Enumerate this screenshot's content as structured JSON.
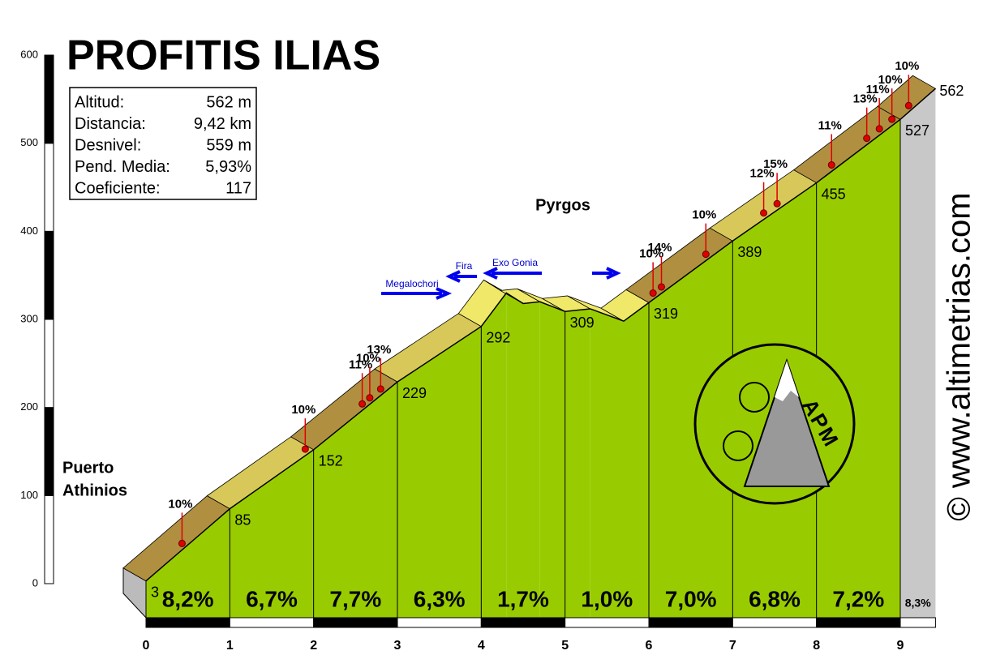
{
  "chart_data": {
    "type": "profile",
    "title": "PROFITIS ILIAS",
    "info": [
      {
        "label": "Altitud:",
        "value": "562 m"
      },
      {
        "label": "Distancia:",
        "value": "9,42 km"
      },
      {
        "label": "Desnivel:",
        "value": "559 m"
      },
      {
        "label": "Pend. Media:",
        "value": "5,93%"
      },
      {
        "label": "Coeficiente:",
        "value": "117"
      }
    ],
    "xlim": [
      0,
      9.42
    ],
    "xticks": [
      0,
      1,
      2,
      3,
      4,
      5,
      6,
      7,
      8,
      9
    ],
    "ylim": [
      0,
      600
    ],
    "yticks": [
      0,
      100,
      200,
      300,
      400,
      500,
      600
    ],
    "profile": {
      "x": [
        0,
        1,
        2,
        3,
        4,
        4.3,
        4.5,
        4.7,
        5,
        5.3,
        5.7,
        6,
        7,
        8,
        9,
        9.42
      ],
      "y": [
        3,
        85,
        152,
        229,
        292,
        330,
        318,
        320,
        309,
        312,
        298,
        319,
        389,
        455,
        527,
        562
      ]
    },
    "altitude_labels": {
      "x": [
        0,
        1,
        2,
        3,
        4,
        5,
        6,
        7,
        8,
        9,
        9.42
      ],
      "values": [
        3,
        85,
        152,
        229,
        292,
        309,
        319,
        389,
        455,
        527,
        562
      ]
    },
    "segments": {
      "values": [
        8.2,
        6.7,
        7.7,
        6.3,
        1.7,
        1.0,
        7.0,
        6.8,
        7.2,
        8.3
      ],
      "value_labels": [
        "8,2%",
        "6,7%",
        "7,7%",
        "6,3%",
        "1,7%",
        "1,0%",
        "7,0%",
        "6,8%",
        "7,2%",
        "8,3%"
      ]
    },
    "ramps": [
      {
        "x": 0.43,
        "value": 10,
        "label": "10%"
      },
      {
        "x": 1.9,
        "value": 10,
        "label": "10%"
      },
      {
        "x": 2.58,
        "value": 11,
        "label": "11%"
      },
      {
        "x": 2.67,
        "value": 10,
        "label": "10%"
      },
      {
        "x": 2.8,
        "value": 13,
        "label": "13%"
      },
      {
        "x": 6.05,
        "value": 10,
        "label": "10%"
      },
      {
        "x": 6.15,
        "value": 14,
        "label": "14%"
      },
      {
        "x": 6.68,
        "value": 10,
        "label": "10%"
      },
      {
        "x": 7.37,
        "value": 12,
        "label": "12%"
      },
      {
        "x": 7.53,
        "value": 15,
        "label": "15%"
      },
      {
        "x": 8.18,
        "value": 11,
        "label": "11%"
      },
      {
        "x": 8.6,
        "value": 13,
        "label": "13%"
      },
      {
        "x": 8.75,
        "value": 11,
        "label": "11%"
      },
      {
        "x": 8.9,
        "value": 10,
        "label": "10%"
      },
      {
        "x": 9.1,
        "value": 10,
        "label": "10%"
      }
    ],
    "places": {
      "start": [
        "Puerto",
        "Athinios"
      ],
      "town": "Pyrgos"
    },
    "directions": {
      "megalochori": "Megalochori",
      "fira": "Fira",
      "exo_gonia": "Exo Gonia"
    },
    "logo": "APM",
    "credit": "© www.altimetrias.com"
  }
}
